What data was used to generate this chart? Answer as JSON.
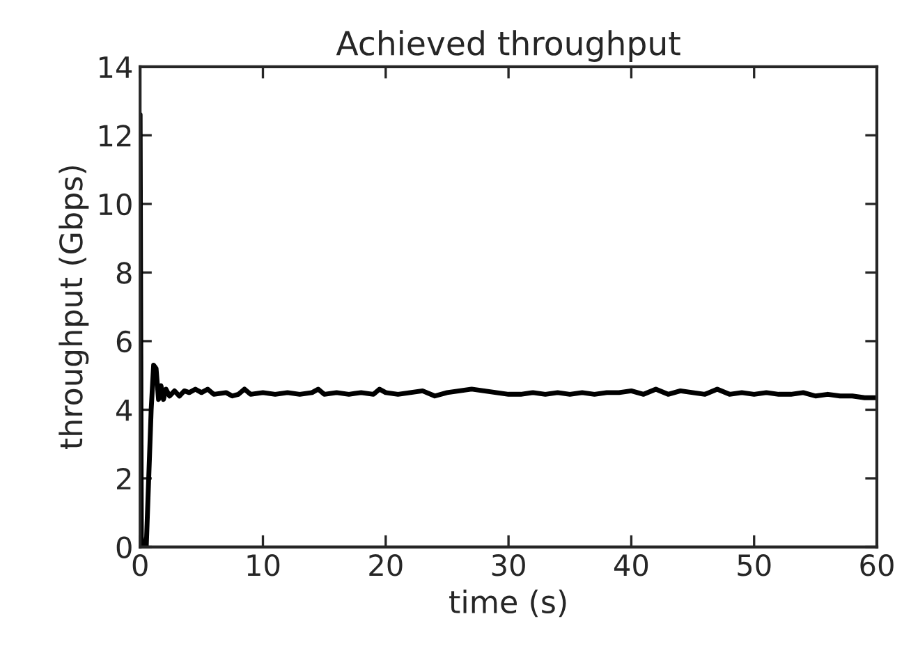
{
  "chart_data": {
    "type": "line",
    "title": "Achieved throughput",
    "xlabel": "time (s)",
    "ylabel": "throughput (Gbps)",
    "xlim": [
      0,
      60
    ],
    "xticks": [
      0,
      10,
      20,
      30,
      40,
      50,
      60
    ],
    "ylim": [
      0,
      14
    ],
    "yticks": [
      0,
      2,
      4,
      6,
      8,
      10,
      12,
      14
    ],
    "grid": false,
    "legend": false,
    "series": [
      {
        "color": "#000000",
        "x": [
          0,
          0.1,
          0.2,
          0.5,
          0.9,
          1.1,
          1.3,
          1.5,
          1.7,
          1.9,
          2.1,
          2.4,
          2.8,
          3.2,
          3.6,
          4,
          4.5,
          5,
          5.5,
          6,
          7,
          7.5,
          8,
          8.5,
          9,
          10,
          11,
          12,
          13,
          14,
          14.5,
          15,
          16,
          17,
          18,
          19,
          19.5,
          20,
          21,
          22,
          23,
          24,
          25,
          26,
          27,
          28,
          29,
          30,
          31,
          32,
          33,
          34,
          35,
          36,
          37,
          38,
          39,
          40,
          41,
          42,
          43,
          44,
          45,
          46,
          47,
          48,
          49,
          50,
          51,
          52,
          53,
          54,
          55,
          56,
          57,
          58,
          59,
          60
        ],
        "values": [
          12.6,
          0.3,
          0,
          0,
          4.0,
          5.3,
          5.2,
          4.3,
          4.7,
          4.3,
          4.6,
          4.4,
          4.55,
          4.4,
          4.55,
          4.5,
          4.6,
          4.5,
          4.6,
          4.45,
          4.5,
          4.4,
          4.45,
          4.6,
          4.45,
          4.5,
          4.45,
          4.5,
          4.45,
          4.5,
          4.6,
          4.45,
          4.5,
          4.45,
          4.5,
          4.45,
          4.6,
          4.5,
          4.45,
          4.5,
          4.55,
          4.4,
          4.5,
          4.55,
          4.6,
          4.55,
          4.5,
          4.45,
          4.45,
          4.5,
          4.45,
          4.5,
          4.45,
          4.5,
          4.45,
          4.5,
          4.5,
          4.55,
          4.45,
          4.6,
          4.45,
          4.55,
          4.5,
          4.45,
          4.6,
          4.45,
          4.5,
          4.45,
          4.5,
          4.45,
          4.45,
          4.5,
          4.4,
          4.45,
          4.4,
          4.4,
          4.35,
          4.35
        ]
      }
    ]
  }
}
